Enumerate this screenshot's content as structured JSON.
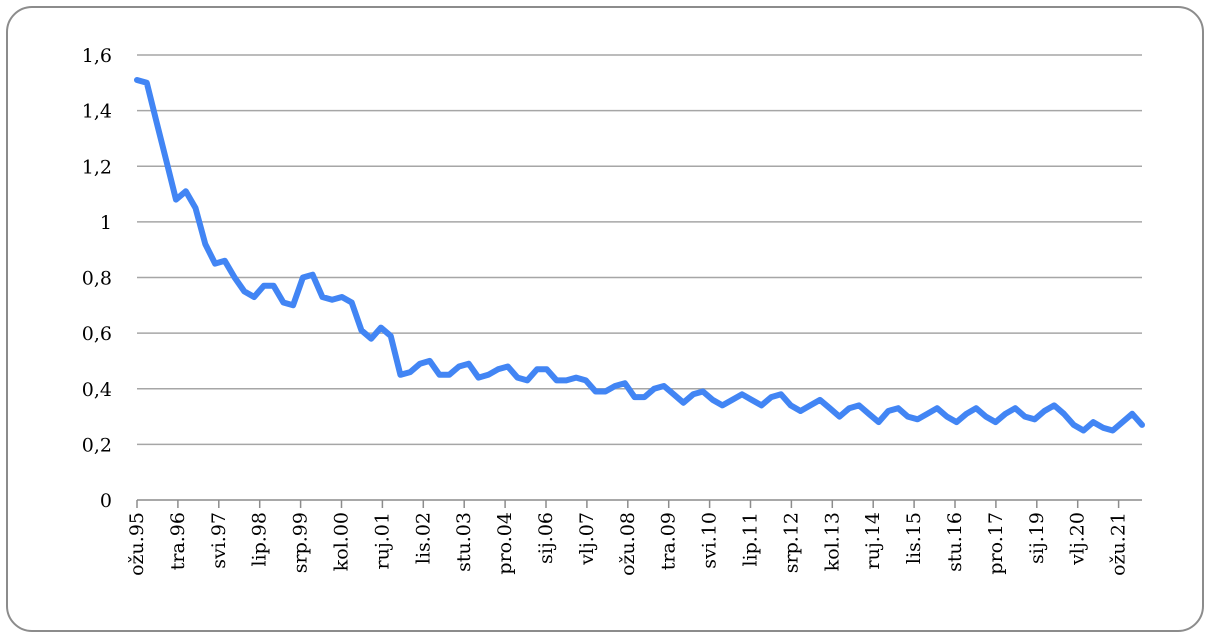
{
  "chart_data": {
    "type": "line",
    "title": "",
    "xlabel": "",
    "ylabel": "",
    "ylim": [
      0,
      1.6
    ],
    "yticks": [
      "0",
      "0,2",
      "0,4",
      "0,6",
      "0,8",
      "1",
      "1,2",
      "1,4",
      "1,6"
    ],
    "ytick_values": [
      0,
      0.2,
      0.4,
      0.6,
      0.8,
      1.0,
      1.2,
      1.4,
      1.6
    ],
    "grid": true,
    "line_color": "#4285f4",
    "grid_color": "#a6a6a6",
    "x_tick_labels": [
      "ožu.95",
      "tra.96",
      "svi.97",
      "lip.98",
      "srp.99",
      "kol.00",
      "ruj.01",
      "lis.02",
      "stu.03",
      "pro.04",
      "sij.06",
      "vlj.07",
      "ožu.08",
      "tra.09",
      "svi.10",
      "lip.11",
      "srp.12",
      "kol.13",
      "ruj.14",
      "lis.15",
      "stu.16",
      "pro.17",
      "sij.19",
      "vlj.20",
      "ožu.21"
    ],
    "series": [
      {
        "values": [
          1.51,
          1.5,
          1.36,
          1.22,
          1.08,
          1.11,
          1.05,
          0.92,
          0.85,
          0.86,
          0.8,
          0.75,
          0.73,
          0.77,
          0.77,
          0.71,
          0.7,
          0.8,
          0.81,
          0.73,
          0.72,
          0.73,
          0.71,
          0.61,
          0.58,
          0.62,
          0.59,
          0.45,
          0.46,
          0.49,
          0.5,
          0.45,
          0.45,
          0.48,
          0.49,
          0.44,
          0.45,
          0.47,
          0.48,
          0.44,
          0.43,
          0.47,
          0.47,
          0.43,
          0.43,
          0.44,
          0.43,
          0.39,
          0.39,
          0.41,
          0.42,
          0.37,
          0.37,
          0.4,
          0.41,
          0.38,
          0.35,
          0.38,
          0.39,
          0.36,
          0.34,
          0.36,
          0.38,
          0.36,
          0.34,
          0.37,
          0.38,
          0.34,
          0.32,
          0.34,
          0.36,
          0.33,
          0.3,
          0.33,
          0.34,
          0.31,
          0.28,
          0.32,
          0.33,
          0.3,
          0.29,
          0.31,
          0.33,
          0.3,
          0.28,
          0.31,
          0.33,
          0.3,
          0.28,
          0.31,
          0.33,
          0.3,
          0.29,
          0.32,
          0.34,
          0.31,
          0.27,
          0.25,
          0.28,
          0.26,
          0.25,
          0.28,
          0.31,
          0.27
        ]
      }
    ]
  }
}
